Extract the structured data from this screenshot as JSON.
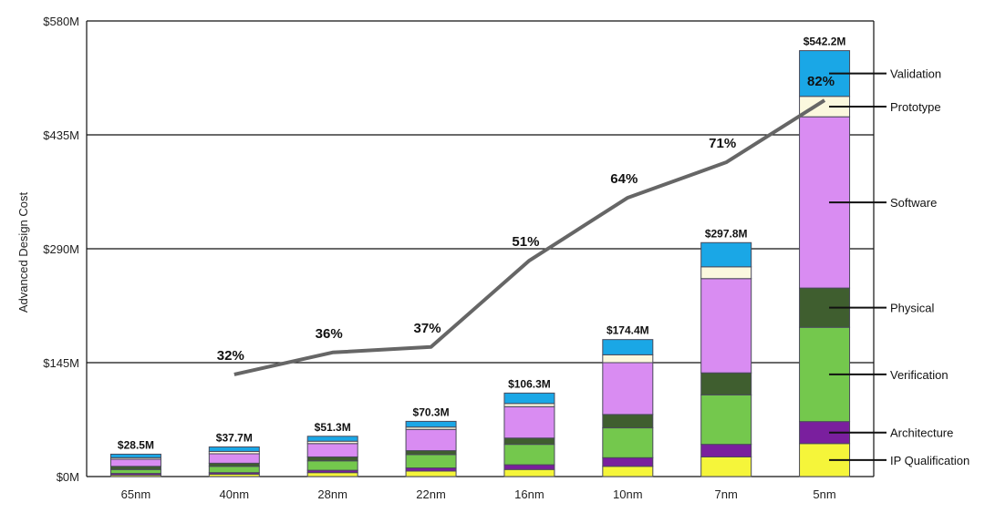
{
  "chart_data": {
    "type": "bar",
    "subtype": "stacked",
    "ylabel": "Advanced Design Cost",
    "ylim": [
      0,
      580
    ],
    "yticks": [
      0,
      145,
      290,
      435,
      580
    ],
    "ytick_labels": [
      "$0M",
      "$145M",
      "$290M",
      "$435M",
      "$580M"
    ],
    "categories": [
      "65nm",
      "40nm",
      "28nm",
      "22nm",
      "16nm",
      "10nm",
      "7nm",
      "5nm"
    ],
    "totals": [
      "$28.5M",
      "$37.7M",
      "$51.3M",
      "$70.3M",
      "$106.3M",
      "$174.4M",
      "$297.8M",
      "$542.2M"
    ],
    "series": [
      {
        "name": "IP Qualification",
        "color": "#f5f53a",
        "values": [
          2,
          3,
          5,
          7,
          9,
          13,
          25,
          42
        ]
      },
      {
        "name": "Architecture",
        "color": "#7a1f9e",
        "values": [
          2,
          2,
          3,
          4,
          6,
          11,
          16,
          28
        ]
      },
      {
        "name": "Verification",
        "color": "#74c84d",
        "values": [
          5,
          8,
          12,
          17,
          26,
          38,
          63,
          120
        ]
      },
      {
        "name": "Physical",
        "color": "#3f5e2f",
        "values": [
          4,
          4,
          5,
          5,
          8,
          17,
          28,
          50
        ]
      },
      {
        "name": "Software",
        "color": "#d98cf2",
        "values": [
          9,
          12,
          17,
          27,
          40,
          66,
          120,
          218
        ]
      },
      {
        "name": "Prototype",
        "color": "#fbf8de",
        "values": [
          2,
          3,
          3,
          3,
          4,
          10,
          15,
          26
        ]
      },
      {
        "name": "Validation",
        "color": "#1aa7e6",
        "values": [
          4.5,
          5.7,
          6.3,
          7.3,
          13.3,
          19.4,
          30.8,
          58.2
        ]
      }
    ],
    "line_series": {
      "color": "#666666",
      "categories": [
        "40nm",
        "28nm",
        "22nm",
        "16nm",
        "10nm",
        "7nm",
        "5nm"
      ],
      "y_positions_data_units": [
        130,
        158,
        165,
        275,
        355,
        400,
        479
      ],
      "labels": [
        "32%",
        "36%",
        "37%",
        "51%",
        "64%",
        "71%",
        "82%"
      ]
    },
    "legend": {
      "placement": "right",
      "items": [
        "Validation",
        "Prototype",
        "Software",
        "Physical",
        "Verification",
        "Architecture",
        "IP Qualification"
      ]
    }
  }
}
